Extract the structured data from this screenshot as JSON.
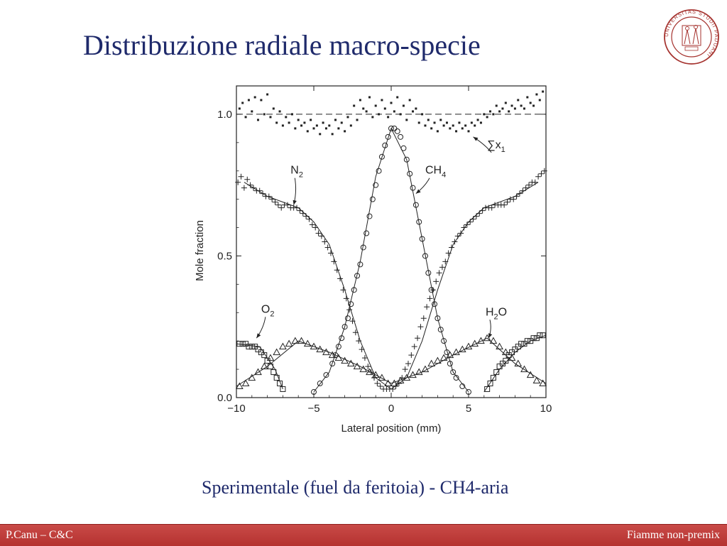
{
  "slide": {
    "title": "Distribuzione radiale macro-specie",
    "caption": "Sperimentale (fuel da feritoia) - CH4-aria"
  },
  "footer": {
    "left": "P.Canu – C&C",
    "right": "Fiamme non-premix"
  },
  "colors": {
    "title": "#1f2a6b",
    "footer_bar": "#b53230",
    "seal": "#a5322e",
    "plot_ink": "#222222"
  },
  "logo": {
    "icon": "university-seal-icon",
    "text": "UNIVERSITAS STUDII PADUANI"
  },
  "chart_data": {
    "type": "scatter",
    "xlabel": "Lateral position (mm)",
    "ylabel": "Mole fraction",
    "xlim": [
      -10,
      10
    ],
    "ylim": [
      0,
      1.1
    ],
    "xticks": [
      -10,
      -5,
      0,
      5,
      10
    ],
    "xtick_labels": [
      "−10",
      "−5",
      "0",
      "5",
      "10"
    ],
    "yticks": [
      0,
      0.5,
      1.0
    ],
    "ytick_labels": [
      "0.0",
      "0.5",
      "1.0"
    ],
    "grid": false,
    "reference_line": {
      "y": 1.0,
      "style": "dashed"
    },
    "annotations": [
      {
        "series": "sum",
        "text": "∑x",
        "sub": "1",
        "at": [
          6.2,
          0.88
        ],
        "arrow_to": [
          5.3,
          0.92
        ]
      },
      {
        "series": "N2",
        "text": "N",
        "sub": "2",
        "at": [
          -6.5,
          0.79
        ],
        "arrow_to": [
          -6.3,
          0.68
        ]
      },
      {
        "series": "CH4",
        "text": "CH",
        "sub": "4",
        "at": [
          2.2,
          0.79
        ],
        "arrow_to": [
          1.6,
          0.72
        ]
      },
      {
        "series": "O2",
        "text": "O",
        "sub": "2",
        "at": [
          -8.4,
          0.3
        ],
        "arrow_to": [
          -8.7,
          0.21
        ]
      },
      {
        "series": "H2O",
        "text": "H",
        "sub": "2",
        "text2": "O",
        "at": [
          6.1,
          0.29
        ],
        "arrow_to": [
          6.3,
          0.21
        ]
      }
    ],
    "series": [
      {
        "id": "sum",
        "marker": "dot",
        "x": [
          -9.8,
          -9.6,
          -9.4,
          -9.2,
          -9.0,
          -8.8,
          -8.6,
          -8.4,
          -8.2,
          -8.0,
          -7.8,
          -7.6,
          -7.4,
          -7.2,
          -7.0,
          -6.8,
          -6.6,
          -6.4,
          -6.2,
          -6.0,
          -5.8,
          -5.6,
          -5.4,
          -5.2,
          -5.0,
          -4.8,
          -4.6,
          -4.4,
          -4.2,
          -4.0,
          -3.8,
          -3.6,
          -3.4,
          -3.2,
          -3.0,
          -2.8,
          -2.6,
          -2.4,
          -2.2,
          -2.0,
          -1.8,
          -1.6,
          -1.4,
          -1.2,
          -1.0,
          -0.8,
          -0.6,
          -0.4,
          -0.2,
          0.0,
          0.2,
          0.4,
          0.6,
          0.8,
          1.0,
          1.2,
          1.4,
          1.6,
          1.8,
          2.0,
          2.2,
          2.4,
          2.6,
          2.8,
          3.0,
          3.2,
          3.4,
          3.6,
          3.8,
          4.0,
          4.2,
          4.4,
          4.6,
          4.8,
          5.0,
          5.2,
          5.4,
          5.6,
          5.8,
          6.0,
          6.2,
          6.4,
          6.6,
          6.8,
          7.0,
          7.2,
          7.4,
          7.6,
          7.8,
          8.0,
          8.2,
          8.4,
          8.6,
          8.8,
          9.0,
          9.2,
          9.4,
          9.6,
          9.8
        ],
        "y": [
          1.02,
          1.04,
          0.99,
          1.05,
          1.01,
          1.06,
          0.98,
          1.05,
          1.0,
          1.07,
          0.99,
          1.02,
          0.97,
          1.01,
          0.96,
          0.99,
          0.97,
          1.0,
          0.95,
          0.98,
          0.96,
          0.97,
          0.94,
          0.98,
          0.95,
          0.96,
          0.93,
          0.97,
          0.95,
          0.96,
          0.93,
          0.98,
          0.95,
          0.97,
          0.94,
          0.99,
          0.96,
          1.03,
          0.98,
          1.05,
          1.02,
          1.01,
          1.06,
          0.99,
          1.03,
          1.0,
          1.05,
          1.02,
          0.99,
          1.04,
          1.01,
          1.06,
          1.0,
          1.03,
          0.98,
          1.05,
          1.01,
          1.02,
          0.97,
          1.0,
          0.96,
          0.98,
          0.95,
          0.97,
          0.94,
          0.98,
          0.96,
          0.97,
          0.95,
          0.96,
          0.94,
          0.97,
          0.95,
          0.96,
          0.94,
          0.97,
          0.96,
          0.98,
          0.97,
          1.0,
          0.99,
          1.01,
          1.0,
          1.03,
          1.01,
          1.02,
          1.04,
          1.01,
          1.03,
          1.02,
          1.05,
          1.03,
          1.02,
          1.06,
          1.04,
          1.03,
          1.07,
          1.05,
          1.08
        ]
      },
      {
        "id": "N2",
        "marker": "plus",
        "x": [
          -9.9,
          -9.7,
          -9.5,
          -9.3,
          -9.1,
          -8.9,
          -8.7,
          -8.5,
          -8.3,
          -8.1,
          -7.9,
          -7.7,
          -7.5,
          -7.3,
          -7.1,
          -6.9,
          -6.7,
          -6.5,
          -6.3,
          -6.1,
          -5.9,
          -5.7,
          -5.5,
          -5.3,
          -5.1,
          -4.9,
          -4.7,
          -4.5,
          -4.3,
          -4.1,
          -3.9,
          -3.7,
          -3.5,
          -3.3,
          -3.1,
          -2.9,
          -2.7,
          -2.5,
          -2.3,
          -2.1,
          -1.9,
          -1.7,
          -1.5,
          -1.3,
          -1.1,
          -0.9,
          -0.7,
          -0.5,
          -0.3,
          -0.1,
          0.1,
          0.3,
          0.5,
          0.7,
          0.9,
          1.1,
          1.3,
          1.5,
          1.7,
          1.9,
          2.1,
          2.3,
          2.5,
          2.7,
          2.9,
          3.1,
          3.3,
          3.5,
          3.7,
          3.9,
          4.1,
          4.3,
          4.5,
          4.7,
          4.9,
          5.1,
          5.3,
          5.5,
          5.7,
          5.9,
          6.1,
          6.3,
          6.5,
          6.7,
          6.9,
          7.1,
          7.3,
          7.5,
          7.7,
          7.9,
          8.1,
          8.3,
          8.5,
          8.7,
          8.9,
          9.1,
          9.3,
          9.5,
          9.7,
          9.9
        ],
        "y": [
          0.76,
          0.78,
          0.74,
          0.77,
          0.75,
          0.74,
          0.73,
          0.73,
          0.72,
          0.71,
          0.71,
          0.7,
          0.69,
          0.68,
          0.67,
          0.68,
          0.68,
          0.67,
          0.67,
          0.67,
          0.66,
          0.65,
          0.64,
          0.63,
          0.61,
          0.6,
          0.58,
          0.57,
          0.55,
          0.53,
          0.51,
          0.48,
          0.45,
          0.42,
          0.38,
          0.35,
          0.31,
          0.27,
          0.23,
          0.2,
          0.17,
          0.14,
          0.11,
          0.09,
          0.07,
          0.05,
          0.04,
          0.03,
          0.03,
          0.03,
          0.03,
          0.04,
          0.05,
          0.07,
          0.1,
          0.12,
          0.15,
          0.18,
          0.21,
          0.25,
          0.28,
          0.32,
          0.35,
          0.38,
          0.41,
          0.44,
          0.46,
          0.48,
          0.51,
          0.53,
          0.55,
          0.57,
          0.58,
          0.6,
          0.61,
          0.62,
          0.63,
          0.64,
          0.65,
          0.66,
          0.67,
          0.67,
          0.67,
          0.68,
          0.68,
          0.68,
          0.68,
          0.69,
          0.7,
          0.7,
          0.71,
          0.72,
          0.73,
          0.74,
          0.75,
          0.76,
          0.76,
          0.78,
          0.79,
          0.8
        ]
      },
      {
        "id": "CH4",
        "marker": "circle",
        "x": [
          -5.0,
          -4.6,
          -4.2,
          -3.8,
          -3.6,
          -3.4,
          -3.2,
          -3.0,
          -2.8,
          -2.6,
          -2.4,
          -2.2,
          -2.0,
          -1.8,
          -1.6,
          -1.4,
          -1.2,
          -1.0,
          -0.8,
          -0.6,
          -0.4,
          -0.2,
          0.0,
          0.2,
          0.4,
          0.6,
          0.8,
          1.0,
          1.2,
          1.4,
          1.6,
          1.8,
          2.0,
          2.2,
          2.4,
          2.6,
          2.8,
          3.0,
          3.2,
          3.4,
          3.6,
          3.8,
          4.0,
          4.2,
          4.6,
          5.0
        ],
        "y": [
          0.02,
          0.05,
          0.08,
          0.12,
          0.15,
          0.18,
          0.21,
          0.25,
          0.28,
          0.33,
          0.38,
          0.43,
          0.47,
          0.53,
          0.58,
          0.64,
          0.7,
          0.75,
          0.8,
          0.85,
          0.89,
          0.92,
          0.95,
          0.95,
          0.94,
          0.92,
          0.88,
          0.84,
          0.79,
          0.74,
          0.68,
          0.62,
          0.56,
          0.5,
          0.44,
          0.38,
          0.33,
          0.28,
          0.24,
          0.2,
          0.16,
          0.12,
          0.09,
          0.07,
          0.04,
          0.02
        ]
      },
      {
        "id": "O2",
        "marker": "square",
        "x": [
          -9.8,
          -9.6,
          -9.4,
          -9.2,
          -9.0,
          -8.8,
          -8.6,
          -8.4,
          -8.2,
          -8.0,
          -7.8,
          -7.6,
          -7.4,
          -7.2,
          -7.0,
          6.2,
          6.4,
          6.6,
          6.8,
          7.0,
          7.2,
          7.4,
          7.6,
          7.8,
          8.0,
          8.2,
          8.4,
          8.6,
          8.8,
          9.0,
          9.2,
          9.4,
          9.6,
          9.8
        ],
        "y": [
          0.19,
          0.19,
          0.19,
          0.18,
          0.18,
          0.18,
          0.17,
          0.16,
          0.15,
          0.13,
          0.11,
          0.09,
          0.07,
          0.05,
          0.03,
          0.03,
          0.05,
          0.07,
          0.09,
          0.11,
          0.12,
          0.13,
          0.15,
          0.16,
          0.17,
          0.18,
          0.19,
          0.19,
          0.2,
          0.2,
          0.21,
          0.21,
          0.22,
          0.22
        ]
      },
      {
        "id": "H2O",
        "marker": "triangle",
        "x": [
          -9.8,
          -9.4,
          -9.0,
          -8.6,
          -8.2,
          -7.8,
          -7.4,
          -7.0,
          -6.6,
          -6.2,
          -5.8,
          -5.4,
          -5.0,
          -4.6,
          -4.2,
          -3.8,
          -3.4,
          -3.0,
          -2.6,
          -2.2,
          -1.8,
          -1.4,
          -1.0,
          -0.6,
          -0.2,
          0.2,
          0.6,
          1.0,
          1.4,
          1.8,
          2.2,
          2.6,
          3.0,
          3.4,
          3.8,
          4.2,
          4.6,
          5.0,
          5.4,
          5.8,
          6.2,
          6.6,
          7.0,
          7.4,
          7.8,
          8.2,
          8.6,
          9.0,
          9.4,
          9.8
        ],
        "y": [
          0.04,
          0.05,
          0.07,
          0.09,
          0.11,
          0.14,
          0.16,
          0.18,
          0.19,
          0.2,
          0.2,
          0.19,
          0.18,
          0.17,
          0.16,
          0.15,
          0.14,
          0.13,
          0.12,
          0.11,
          0.1,
          0.09,
          0.08,
          0.07,
          0.05,
          0.05,
          0.06,
          0.07,
          0.08,
          0.09,
          0.1,
          0.12,
          0.13,
          0.14,
          0.15,
          0.16,
          0.17,
          0.18,
          0.19,
          0.2,
          0.21,
          0.2,
          0.18,
          0.16,
          0.14,
          0.12,
          0.1,
          0.08,
          0.06,
          0.05
        ]
      }
    ],
    "curves": [
      {
        "series": "N2",
        "x": [
          -9.5,
          -8,
          -6.5,
          -6,
          -5,
          -4,
          -3,
          -2,
          -1,
          0,
          1,
          2,
          3,
          4,
          5,
          6,
          6.5,
          8,
          9.5
        ],
        "y": [
          0.76,
          0.71,
          0.68,
          0.67,
          0.62,
          0.54,
          0.38,
          0.2,
          0.07,
          0.03,
          0.07,
          0.2,
          0.38,
          0.54,
          0.62,
          0.67,
          0.68,
          0.71,
          0.76
        ]
      },
      {
        "series": "CH4",
        "x": [
          -5,
          -4,
          -3,
          -2,
          -1,
          0,
          1,
          2,
          3,
          4,
          5
        ],
        "y": [
          0.02,
          0.09,
          0.25,
          0.48,
          0.78,
          0.95,
          0.84,
          0.56,
          0.28,
          0.09,
          0.02
        ]
      },
      {
        "series": "O2-left",
        "x": [
          -10,
          -8.5,
          -7.5,
          -7
        ],
        "y": [
          0.19,
          0.18,
          0.1,
          0.03
        ]
      },
      {
        "series": "O2-right",
        "x": [
          6,
          7,
          8,
          9,
          10
        ],
        "y": [
          0.02,
          0.1,
          0.16,
          0.2,
          0.22
        ]
      },
      {
        "series": "H2O",
        "x": [
          -10,
          -8,
          -6,
          -4,
          -2,
          0,
          2,
          4,
          6.2,
          8,
          10
        ],
        "y": [
          0.04,
          0.11,
          0.2,
          0.16,
          0.11,
          0.05,
          0.09,
          0.15,
          0.21,
          0.12,
          0.05
        ]
      }
    ]
  }
}
